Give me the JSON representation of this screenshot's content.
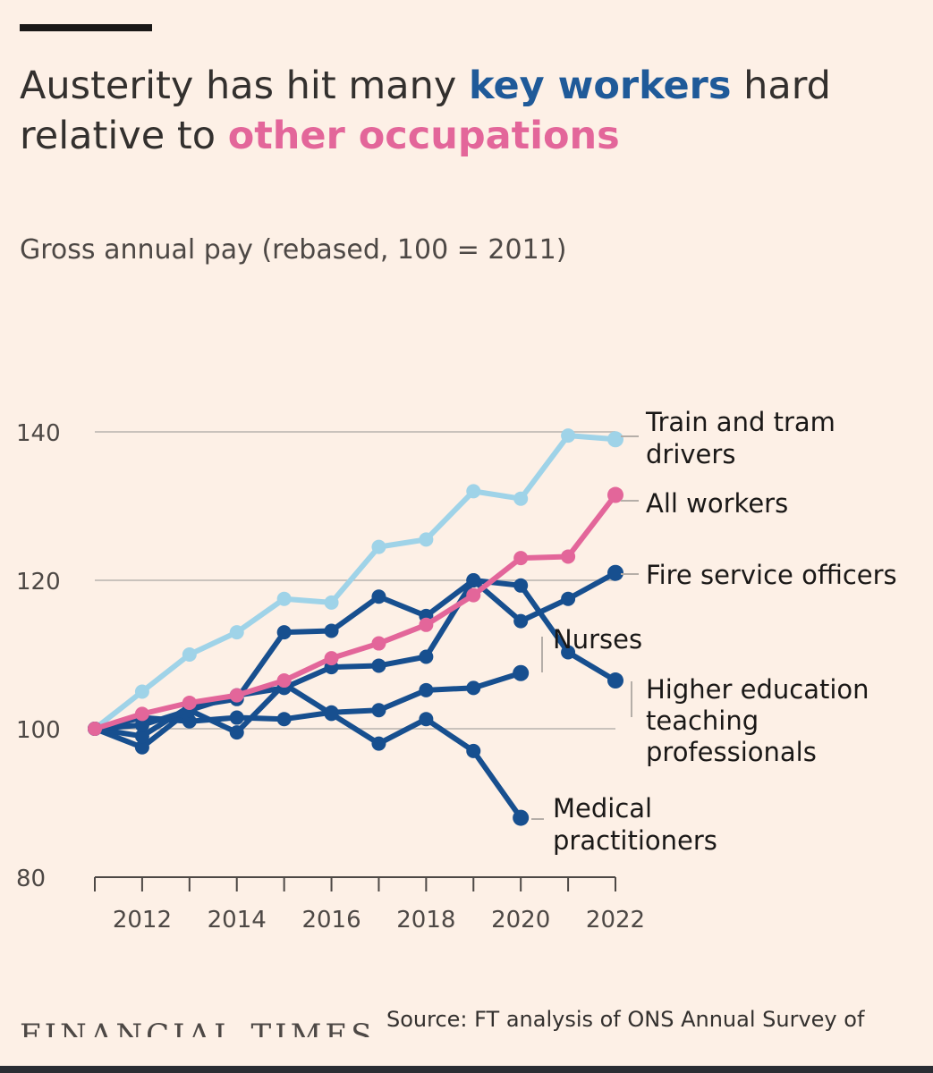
{
  "header": {
    "title_part1": "Austerity has hit many ",
    "title_key": "key workers",
    "title_part2": " hard relative to ",
    "title_other": "other occupations",
    "subtitle": "Gross annual pay (rebased, 100 = 2011)"
  },
  "footer": {
    "logo": "FINANCIAL TIMES",
    "source": "Source: FT analysis of ONS Annual Survey of"
  },
  "colors": {
    "key_workers": "#1f5a99",
    "other": "#e3669a",
    "train": "#9fd3e8",
    "series_dark": "#174f8f",
    "grid": "#c9c2bc"
  },
  "chart_data": {
    "type": "line",
    "title": "Austerity has hit many key workers hard relative to other occupations",
    "subtitle": "Gross annual pay (rebased, 100 = 2011)",
    "xlabel": "",
    "ylabel": "",
    "xlim": [
      2011,
      2022
    ],
    "ylim": [
      80,
      140
    ],
    "yticks": [
      80,
      100,
      120,
      140
    ],
    "xticks": [
      2012,
      2014,
      2016,
      2018,
      2020,
      2022
    ],
    "x": [
      2011,
      2012,
      2013,
      2014,
      2015,
      2016,
      2017,
      2018,
      2019,
      2020,
      2021,
      2022
    ],
    "grid": true,
    "series": [
      {
        "name": "Train and tram drivers",
        "label_lines": [
          "Train and tram",
          "drivers"
        ],
        "color": "#9fd3e8",
        "values": [
          100,
          105,
          110,
          113,
          117.5,
          117,
          124.5,
          125.5,
          132,
          131,
          139.5,
          139
        ]
      },
      {
        "name": "All workers",
        "label_lines": [
          "All workers"
        ],
        "color": "#e3669a",
        "values": [
          100,
          102,
          103.5,
          104.5,
          106.5,
          109.5,
          111.5,
          114,
          118,
          123,
          123.2,
          131.5
        ]
      },
      {
        "name": "Fire service officers",
        "label_lines": [
          "Fire service officers"
        ],
        "color": "#174f8f",
        "values": [
          100,
          100.5,
          102.5,
          104.5,
          105.5,
          108.3,
          108.5,
          109.7,
          120,
          114.5,
          117.5,
          121
        ]
      },
      {
        "name": "Nurses",
        "label_lines": [
          "Nurses"
        ],
        "color": "#174f8f",
        "values": [
          100,
          101.5,
          101,
          101.5,
          101.3,
          102.2,
          102.5,
          105.2,
          105.5,
          107.5,
          null,
          null
        ]
      },
      {
        "name": "Higher education teaching professionals",
        "label_lines": [
          "Higher education",
          "teaching",
          "professionals"
        ],
        "color": "#174f8f",
        "values": [
          100,
          99,
          103,
          104,
          113,
          113.2,
          117.8,
          115.2,
          120,
          119.3,
          110.3,
          106.5
        ]
      },
      {
        "name": "Medical practitioners",
        "label_lines": [
          "Medical",
          "practitioners"
        ],
        "color": "#174f8f",
        "values": [
          100,
          97.5,
          102.5,
          99.5,
          106,
          102,
          98,
          101.3,
          97,
          88,
          null,
          null
        ]
      }
    ]
  }
}
